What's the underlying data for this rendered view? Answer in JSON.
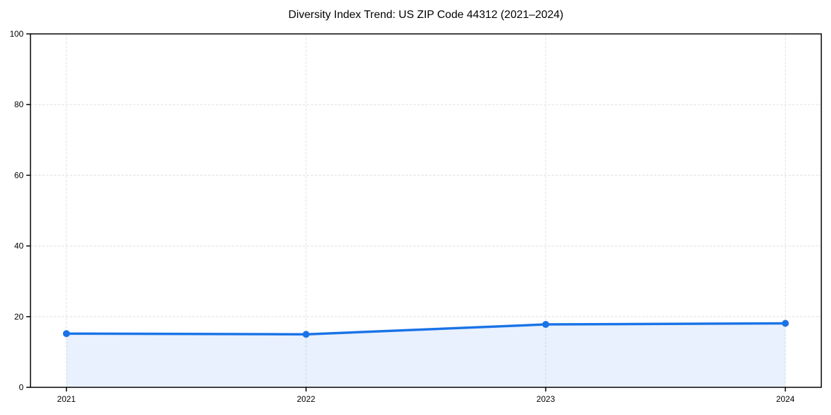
{
  "figure": {
    "background_color": "#ffffff"
  },
  "chart_data": {
    "type": "area",
    "title": "Diversity Index Trend: US ZIP Code 44312 (2021–2024)",
    "categories": [
      "2021",
      "2022",
      "2023",
      "2024"
    ],
    "series": [
      {
        "name": "Diversity Index",
        "values": [
          15.2,
          15.0,
          17.8,
          18.1
        ]
      }
    ],
    "xlabel": "",
    "ylabel": "",
    "ylim": [
      0,
      100
    ],
    "yticks": [
      0,
      20,
      40,
      60,
      80,
      100
    ],
    "grid": true,
    "grid_style": "dashed",
    "legend_position": "none",
    "marker": "circle",
    "colors": {
      "line": "#1a73e8",
      "marker": "#1a73e8",
      "fill": "#1a73e8",
      "fill_opacity": 0.1,
      "grid": "#e0e0e0",
      "axis": "#000000",
      "text": "#000000"
    }
  }
}
